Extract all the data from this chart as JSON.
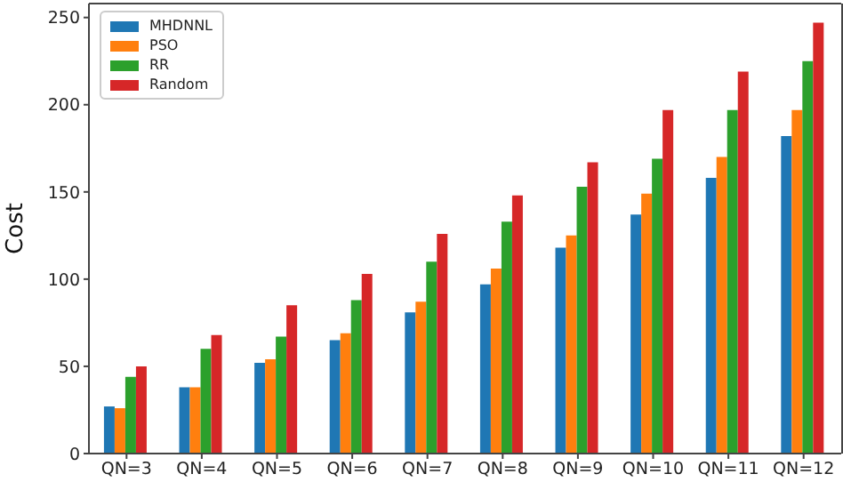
{
  "chart_data": {
    "type": "bar",
    "ylabel": "Cost",
    "categories": [
      "QN=3",
      "QN=4",
      "QN=5",
      "QN=6",
      "QN=7",
      "QN=8",
      "QN=9",
      "QN=10",
      "QN=11",
      "QN=12"
    ],
    "series": [
      {
        "name": "MHDNNL",
        "color": "#1f77b4",
        "values": [
          27,
          38,
          52,
          65,
          81,
          97,
          118,
          137,
          158,
          182
        ]
      },
      {
        "name": "PSO",
        "color": "#ff7f0e",
        "values": [
          26,
          38,
          54,
          69,
          87,
          106,
          125,
          149,
          170,
          197
        ]
      },
      {
        "name": "RR",
        "color": "#2ca02c",
        "values": [
          44,
          60,
          67,
          88,
          110,
          133,
          153,
          169,
          197,
          225
        ]
      },
      {
        "name": "Random",
        "color": "#d62728",
        "values": [
          50,
          68,
          85,
          103,
          126,
          148,
          167,
          197,
          219,
          247
        ]
      }
    ],
    "ylim": [
      0,
      258
    ],
    "yticks": [
      0,
      50,
      100,
      150,
      200,
      250
    ],
    "legend": "top left"
  }
}
